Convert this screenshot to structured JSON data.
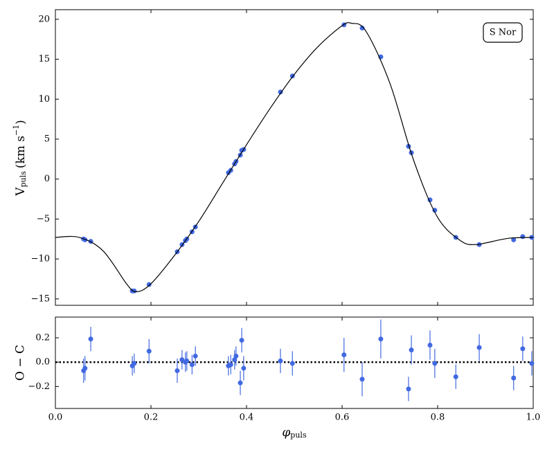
{
  "chart_data": [
    {
      "type": "scatter",
      "ylabel": {
        "main": "V",
        "sub": "puls",
        "unit": "(km s",
        "sup": "−1",
        "close": ")"
      },
      "annotation": "S Nor",
      "series": [
        {
          "name": "observations",
          "color": "#4169e1",
          "x": [
            0.059,
            0.062,
            0.074,
            0.161,
            0.165,
            0.196,
            0.255,
            0.265,
            0.272,
            0.275,
            0.286,
            0.293,
            0.362,
            0.367,
            0.375,
            0.378,
            0.387,
            0.39,
            0.394,
            0.471,
            0.496,
            0.604,
            0.642,
            0.681,
            0.739,
            0.745,
            0.784,
            0.794,
            0.838,
            0.887,
            0.959,
            0.978,
            0.997
          ],
          "values": [
            -7.5,
            -7.6,
            -7.8,
            -14.0,
            -14.0,
            -13.2,
            -9.1,
            -8.2,
            -7.7,
            -7.5,
            -6.6,
            -6.0,
            0.8,
            1.1,
            1.9,
            2.2,
            3.0,
            3.6,
            3.7,
            10.9,
            12.9,
            19.3,
            18.9,
            15.3,
            4.1,
            3.3,
            -2.6,
            -3.9,
            -7.3,
            -8.2,
            -7.6,
            -7.2,
            -7.3
          ]
        },
        {
          "name": "fit",
          "color": "#000000",
          "x": [
            0,
            0.05,
            0.1,
            0.15,
            0.17,
            0.2,
            0.25,
            0.3,
            0.35,
            0.4,
            0.45,
            0.5,
            0.55,
            0.6,
            0.62,
            0.65,
            0.7,
            0.75,
            0.8,
            0.85,
            0.88,
            0.9,
            0.95,
            1.0
          ],
          "values": [
            -7.3,
            -7.3,
            -9.0,
            -13.2,
            -14.1,
            -13.1,
            -9.5,
            -5.3,
            -0.5,
            4.3,
            8.9,
            13.1,
            16.6,
            19.2,
            19.5,
            18.5,
            12.0,
            2.3,
            -4.8,
            -7.8,
            -8.2,
            -8.0,
            -7.4,
            -7.3
          ]
        }
      ],
      "xlim": [
        0,
        1
      ],
      "xticks": [
        0,
        0.2,
        0.4,
        0.6,
        0.8,
        1.0
      ],
      "ylim": [
        -15.8,
        21.2
      ],
      "yticks": [
        {
          "value": -15,
          "label": "−15"
        },
        {
          "value": -10,
          "label": "−10"
        },
        {
          "value": -5,
          "label": "−5"
        },
        0,
        5,
        10,
        15,
        20
      ]
    },
    {
      "type": "errorbar",
      "ylabel": "O − C",
      "xlabel": {
        "main": "φ",
        "sub": "puls"
      },
      "color": "#4169e1",
      "x": [
        0.059,
        0.062,
        0.074,
        0.161,
        0.165,
        0.196,
        0.255,
        0.265,
        0.272,
        0.275,
        0.286,
        0.293,
        0.362,
        0.367,
        0.375,
        0.378,
        0.387,
        0.39,
        0.394,
        0.471,
        0.496,
        0.604,
        0.642,
        0.681,
        0.739,
        0.745,
        0.784,
        0.794,
        0.838,
        0.887,
        0.959,
        0.978,
        0.997
      ],
      "values": [
        -0.07,
        -0.05,
        0.19,
        -0.03,
        -0.01,
        0.09,
        -0.07,
        0.02,
        0.0,
        0.01,
        -0.02,
        0.05,
        -0.03,
        -0.02,
        0.02,
        0.05,
        -0.17,
        0.18,
        -0.05,
        0.01,
        -0.01,
        0.06,
        -0.14,
        0.19,
        -0.22,
        0.1,
        0.14,
        -0.01,
        -0.12,
        0.12,
        -0.13,
        0.11,
        -0.01
      ],
      "errors": [
        0.1,
        0.1,
        0.1,
        0.08,
        0.08,
        0.1,
        0.1,
        0.08,
        0.08,
        0.08,
        0.08,
        0.08,
        0.08,
        0.08,
        0.08,
        0.08,
        0.1,
        0.1,
        0.1,
        0.1,
        0.1,
        0.14,
        0.14,
        0.16,
        0.1,
        0.12,
        0.12,
        0.12,
        0.1,
        0.11,
        0.1,
        0.1,
        0.1
      ],
      "reference_line": 0,
      "xlim": [
        0,
        1
      ],
      "xticks": [
        {
          "value": 0,
          "label": "0.0"
        },
        0.2,
        0.4,
        0.6,
        0.8,
        {
          "value": 1.0,
          "label": "1.0"
        }
      ],
      "ylim": [
        -0.38,
        0.37
      ],
      "yticks": [
        {
          "value": -0.2,
          "label": "−0.2"
        },
        {
          "value": 0,
          "label": "0.0"
        },
        0.2
      ]
    }
  ]
}
